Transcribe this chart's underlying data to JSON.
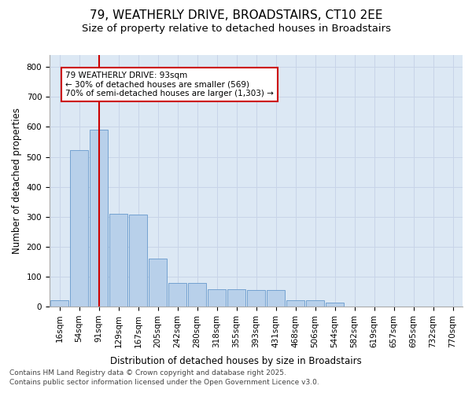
{
  "title_line1": "79, WEATHERLY DRIVE, BROADSTAIRS, CT10 2EE",
  "subtitle": "Size of property relative to detached houses in Broadstairs",
  "xlabel": "Distribution of detached houses by size in Broadstairs",
  "ylabel": "Number of detached properties",
  "categories": [
    "16sqm",
    "54sqm",
    "91sqm",
    "129sqm",
    "167sqm",
    "205sqm",
    "242sqm",
    "280sqm",
    "318sqm",
    "355sqm",
    "393sqm",
    "431sqm",
    "468sqm",
    "506sqm",
    "544sqm",
    "582sqm",
    "619sqm",
    "657sqm",
    "695sqm",
    "732sqm",
    "770sqm"
  ],
  "values": [
    20,
    522,
    590,
    310,
    308,
    160,
    80,
    80,
    58,
    58,
    55,
    55,
    20,
    20,
    12,
    0,
    0,
    0,
    0,
    0,
    0
  ],
  "bar_color": "#b8d0ea",
  "bar_edge_color": "#6699cc",
  "vline_x": 2,
  "vline_color": "#cc0000",
  "annotation_text": "79 WEATHERLY DRIVE: 93sqm\n← 30% of detached houses are smaller (569)\n70% of semi-detached houses are larger (1,303) →",
  "annotation_box_facecolor": "#ffffff",
  "annotation_box_edgecolor": "#cc0000",
  "grid_color": "#c8d4e8",
  "bg_color": "#dce8f4",
  "ylim": [
    0,
    840
  ],
  "yticks": [
    0,
    100,
    200,
    300,
    400,
    500,
    600,
    700,
    800
  ],
  "footer_line1": "Contains HM Land Registry data © Crown copyright and database right 2025.",
  "footer_line2": "Contains public sector information licensed under the Open Government Licence v3.0.",
  "title_fontsize": 11,
  "subtitle_fontsize": 9.5,
  "axis_label_fontsize": 8.5,
  "tick_fontsize": 7.5,
  "annotation_fontsize": 7.5,
  "footer_fontsize": 6.5
}
